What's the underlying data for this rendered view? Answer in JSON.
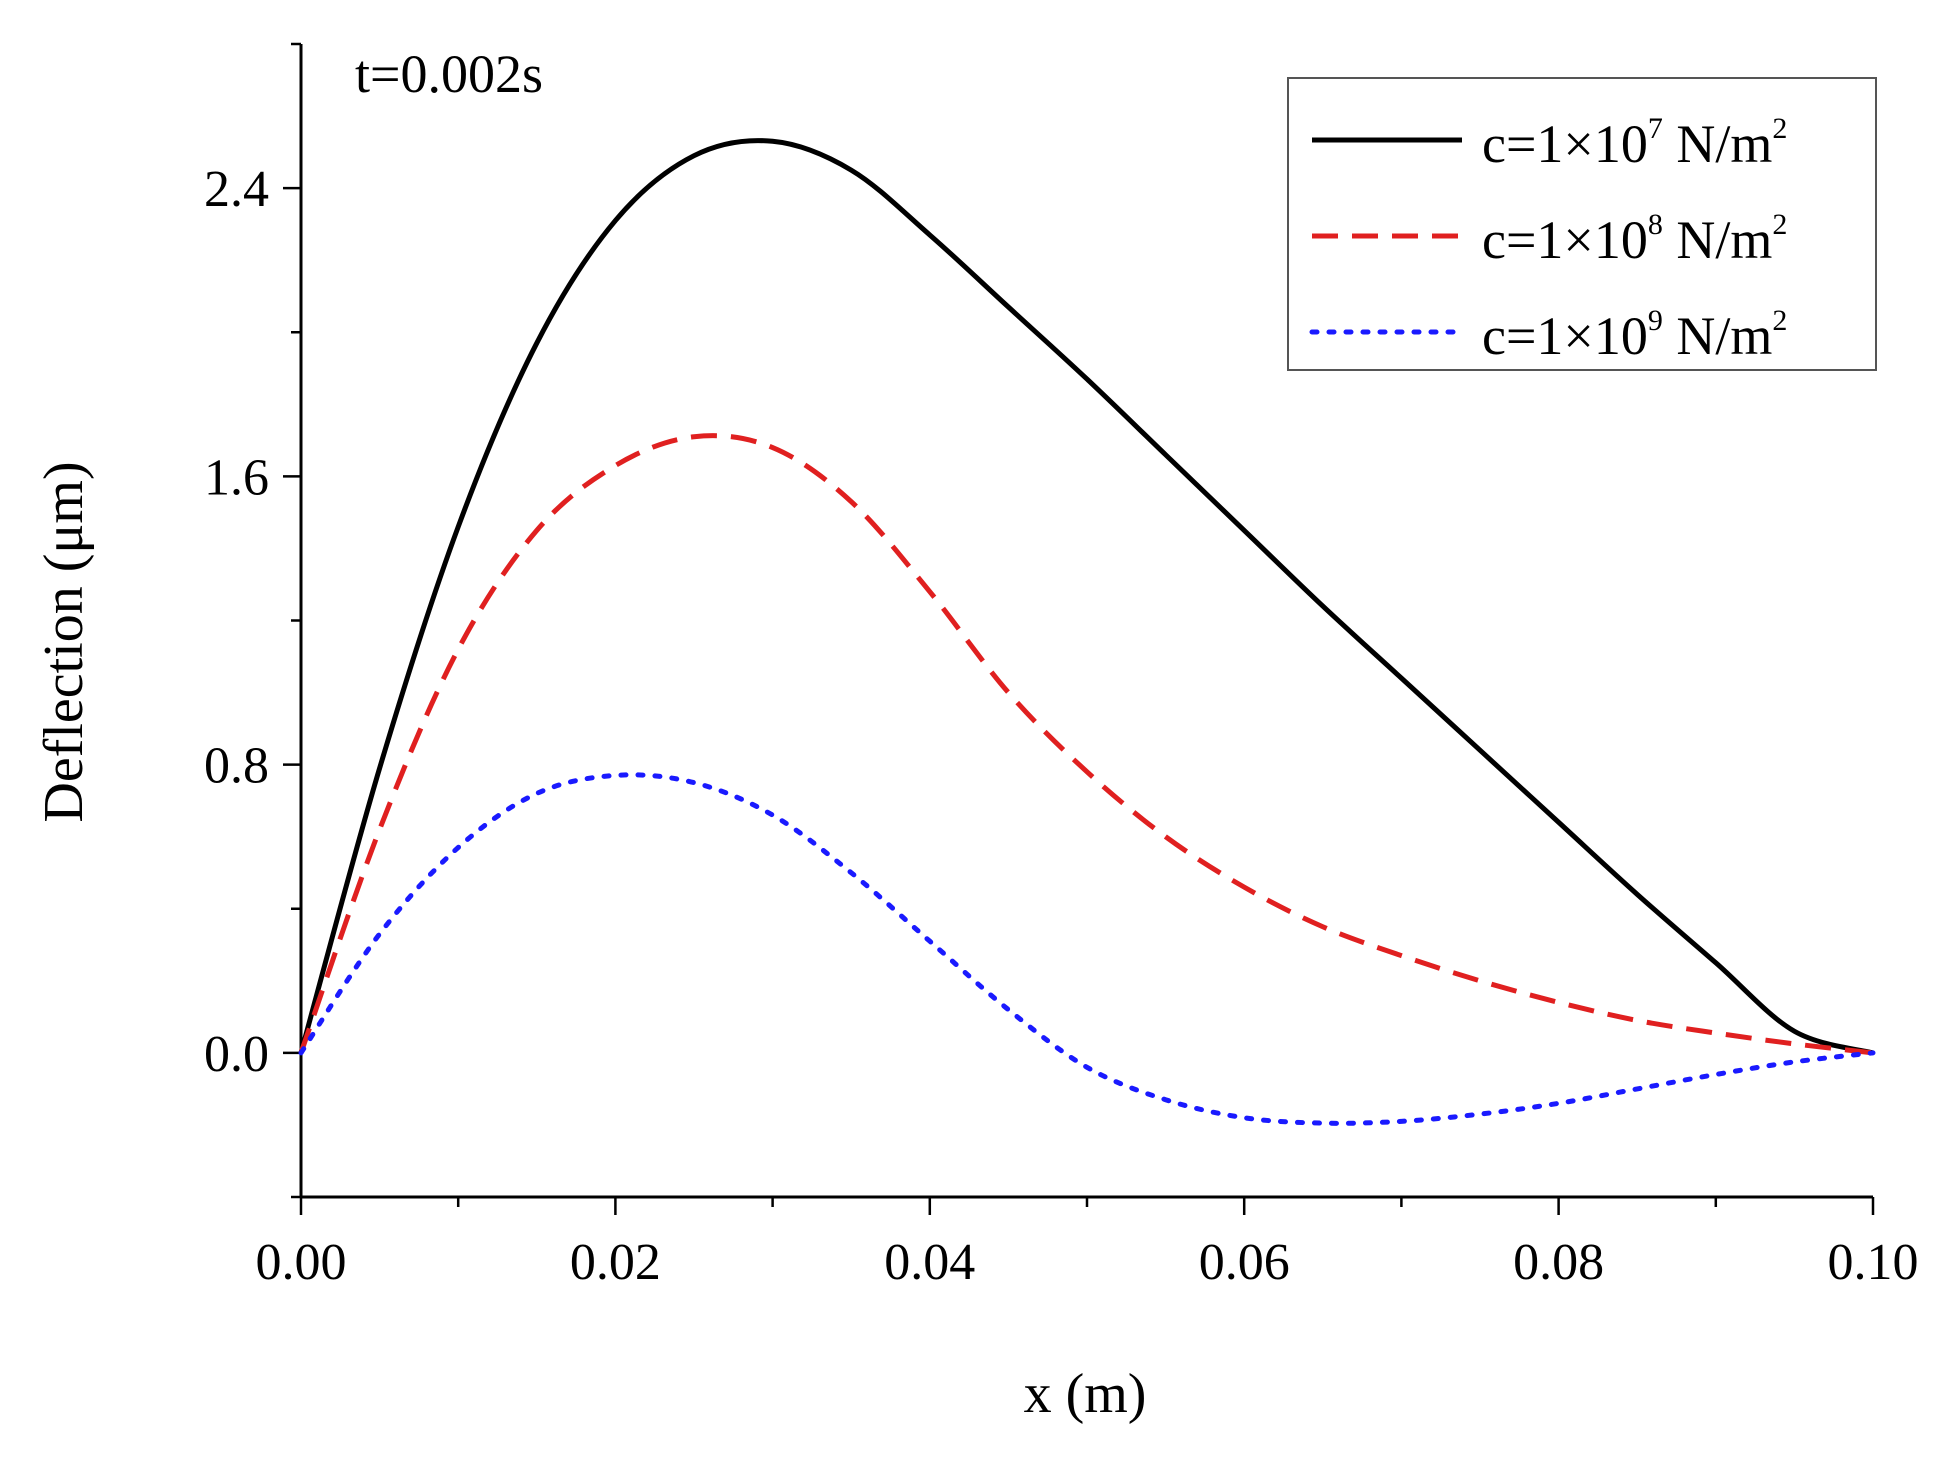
{
  "chart_data": {
    "type": "line",
    "title": "",
    "annotation": "t=0.002s",
    "xlabel": "x (m)",
    "ylabel": "Deflection (μm)",
    "xlim": [
      0.0,
      0.1
    ],
    "ylim": [
      -0.4,
      2.8
    ],
    "grid": false,
    "legend_position": "top-right",
    "x_ticks": [
      "0.00",
      "0.02",
      "0.04",
      "0.06",
      "0.08",
      "0.10"
    ],
    "x_tick_values": [
      0.0,
      0.02,
      0.04,
      0.06,
      0.08,
      0.1
    ],
    "y_ticks": [
      "0.0",
      "0.8",
      "1.6",
      "2.4"
    ],
    "y_tick_values": [
      0.0,
      0.8,
      1.6,
      2.4
    ],
    "series": [
      {
        "name": "c=1×10^7 N/m^2",
        "legend": {
          "base": "c=1×10",
          "exp": "7",
          "unit": " N/m",
          "unit_exp": "2"
        },
        "color": "#000000",
        "style": "solid",
        "x": [
          0,
          0.005,
          0.01,
          0.015,
          0.02,
          0.025,
          0.03,
          0.035,
          0.04,
          0.045,
          0.05,
          0.055,
          0.06,
          0.065,
          0.07,
          0.075,
          0.08,
          0.085,
          0.09,
          0.095,
          0.1
        ],
        "y": [
          0,
          0.79,
          1.46,
          1.97,
          2.31,
          2.49,
          2.53,
          2.45,
          2.27,
          2.07,
          1.87,
          1.66,
          1.45,
          1.24,
          1.04,
          0.84,
          0.64,
          0.44,
          0.25,
          0.06,
          0.0
        ]
      },
      {
        "name": "c=1×10^8 N/m^2",
        "legend": {
          "base": "c=1×10",
          "exp": "8",
          "unit": " N/m",
          "unit_exp": "2"
        },
        "color": "#e02020",
        "style": "dashed",
        "x": [
          0,
          0.005,
          0.01,
          0.015,
          0.02,
          0.025,
          0.03,
          0.035,
          0.04,
          0.045,
          0.05,
          0.055,
          0.06,
          0.065,
          0.07,
          0.075,
          0.08,
          0.085,
          0.09,
          0.095,
          0.1
        ],
        "y": [
          0,
          0.62,
          1.12,
          1.45,
          1.63,
          1.71,
          1.68,
          1.53,
          1.28,
          1.0,
          0.78,
          0.6,
          0.46,
          0.35,
          0.27,
          0.2,
          0.14,
          0.09,
          0.055,
          0.025,
          0.0
        ]
      },
      {
        "name": "c=1×10^9 N/m^2",
        "legend": {
          "base": "c=1×10",
          "exp": "9",
          "unit": " N/m",
          "unit_exp": "2"
        },
        "color": "#1a1aff",
        "style": "dotted",
        "x": [
          0,
          0.005,
          0.01,
          0.015,
          0.02,
          0.025,
          0.03,
          0.035,
          0.04,
          0.045,
          0.05,
          0.055,
          0.06,
          0.065,
          0.07,
          0.075,
          0.08,
          0.085,
          0.09,
          0.095,
          0.1
        ],
        "y": [
          0,
          0.33,
          0.57,
          0.72,
          0.77,
          0.75,
          0.66,
          0.5,
          0.31,
          0.12,
          -0.04,
          -0.13,
          -0.18,
          -0.195,
          -0.19,
          -0.17,
          -0.14,
          -0.1,
          -0.06,
          -0.025,
          0.0
        ]
      }
    ]
  }
}
